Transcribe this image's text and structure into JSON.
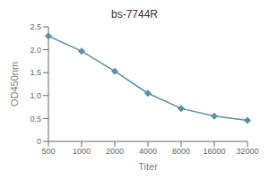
{
  "chart_data": {
    "type": "line",
    "title": "bs-7744R",
    "x_label": "Titer",
    "y_label": "OD450nm",
    "categories": [
      "500",
      "1000",
      "2000",
      "4000",
      "8000",
      "16000",
      "32000"
    ],
    "series": [
      {
        "name": "OD450nm",
        "color": "#5b8fa8",
        "marker": "diamond",
        "values": [
          2.3,
          1.97,
          1.53,
          1.05,
          0.72,
          0.55,
          0.46
        ]
      }
    ],
    "ylim": [
      0,
      2.5
    ],
    "yticks": [
      0,
      0.5,
      {
        "value": 1,
        "label": "1.0"
      },
      1.5,
      {
        "value": 2,
        "label": "2.0"
      },
      2.5
    ],
    "grid": false
  }
}
